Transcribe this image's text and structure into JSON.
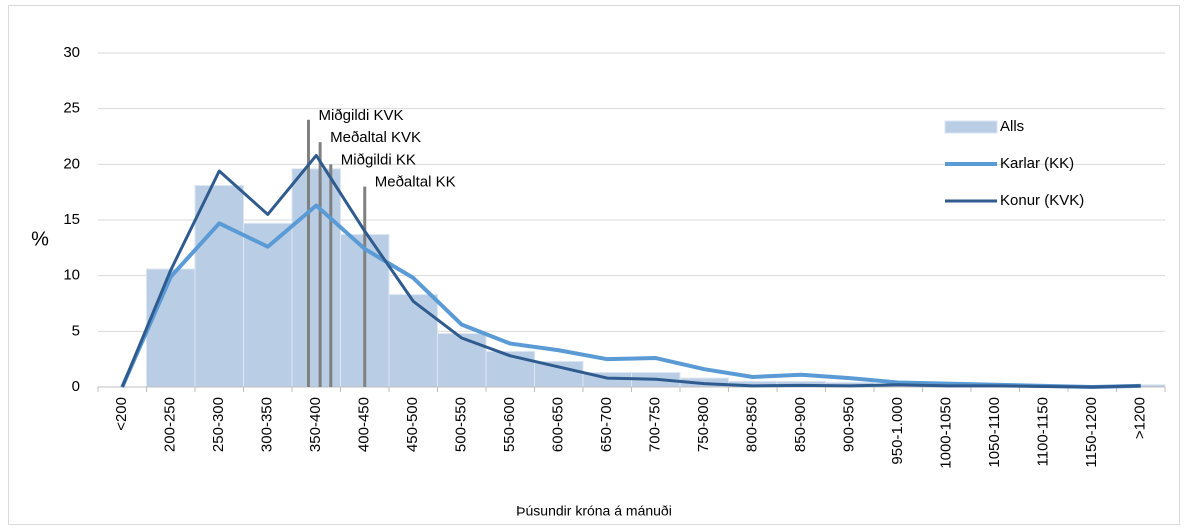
{
  "chart_data": {
    "type": "bar",
    "xlabel": "Þúsundir króna á mánuði",
    "ylabel": "%",
    "categories": [
      "<200",
      "200-250",
      "250-300",
      "300-350",
      "350-400",
      "400-450",
      "450-500",
      "500-550",
      "550-600",
      "600-650",
      "650-700",
      "700-750",
      "750-800",
      "800-850",
      "850-900",
      "900-950",
      "950-1.000",
      "1000-1050",
      "1050-1100",
      "1100-1150",
      "1150-1200",
      ">1200"
    ],
    "series": [
      {
        "name": "Alls",
        "type": "bar",
        "color": "#b9cde5",
        "values": [
          0,
          10.6,
          18.1,
          14.7,
          19.6,
          13.7,
          8.3,
          4.8,
          3.2,
          2.3,
          1.3,
          1.3,
          0.8,
          0.5,
          0.5,
          0.4,
          0.3,
          0.2,
          0.2,
          0.1,
          0.1,
          0.2
        ]
      },
      {
        "name": "Karlar (KK)",
        "type": "line",
        "color": "#5b9bd5",
        "values": [
          0,
          9.9,
          14.7,
          12.6,
          16.3,
          12.4,
          9.8,
          5.6,
          3.9,
          3.3,
          2.5,
          2.6,
          1.6,
          0.9,
          1.1,
          0.8,
          0.4,
          0.3,
          0.2,
          0.1,
          0,
          0.1
        ]
      },
      {
        "name": "Konur (KVK)",
        "type": "line",
        "color": "#2f5b8f",
        "values": [
          0,
          10.5,
          19.4,
          15.5,
          20.8,
          14,
          7.7,
          4.4,
          2.8,
          1.8,
          0.8,
          0.7,
          0.3,
          0.1,
          0.15,
          0.1,
          0.2,
          0.1,
          0.1,
          0.05,
          0,
          0.1
        ]
      }
    ],
    "annotations": [
      {
        "label": "Miðgildi KVK",
        "x": 367,
        "y": 24
      },
      {
        "label": "Meðaltal KVK",
        "x": 379,
        "y": 22
      },
      {
        "label": "Miðgildi KK",
        "x": 390,
        "y": 20
      },
      {
        "label": "Meðaltal KK",
        "x": 425,
        "y": 18
      }
    ],
    "annotation_color": "#808080",
    "bin_start": 150,
    "bin_width": 50,
    "ylim": [
      0,
      30
    ],
    "yticks": [
      0,
      5,
      10,
      15,
      20,
      25,
      30
    ],
    "grid": true,
    "legend": "right"
  }
}
